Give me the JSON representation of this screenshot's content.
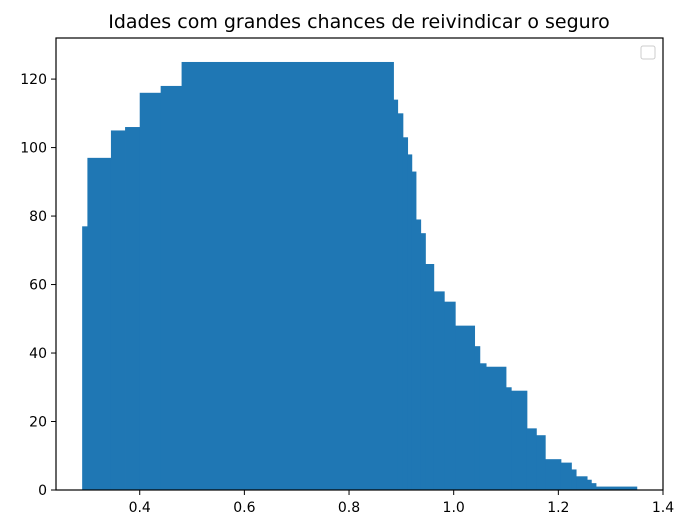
{
  "chart_data": {
    "type": "bar",
    "title": "Idades com grandes chances de reivindicar o seguro",
    "xlabel": "",
    "ylabel": "",
    "xlim": [
      0.24,
      1.4
    ],
    "ylim": [
      0,
      132
    ],
    "xticks": [
      0.4,
      0.6,
      0.8,
      1.0,
      1.2,
      1.4
    ],
    "xtick_labels": [
      "0.4",
      "0.6",
      "0.8",
      "1.0",
      "1.2",
      "1.4"
    ],
    "yticks": [
      0,
      20,
      40,
      60,
      80,
      100,
      120
    ],
    "ytick_labels": [
      "0",
      "20",
      "40",
      "60",
      "80",
      "100",
      "120"
    ],
    "grid": false,
    "legend": {
      "placement": "top-right",
      "entries": []
    },
    "bar_color": "#1f77b4",
    "bars": [
      {
        "x0": 0.29,
        "x1": 0.3,
        "value": 77
      },
      {
        "x0": 0.3,
        "x1": 0.345,
        "value": 97
      },
      {
        "x0": 0.345,
        "x1": 0.372,
        "value": 105
      },
      {
        "x0": 0.372,
        "x1": 0.4,
        "value": 106
      },
      {
        "x0": 0.4,
        "x1": 0.44,
        "value": 116
      },
      {
        "x0": 0.44,
        "x1": 0.48,
        "value": 118
      },
      {
        "x0": 0.48,
        "x1": 0.885,
        "value": 125
      },
      {
        "x0": 0.885,
        "x1": 0.893,
        "value": 114
      },
      {
        "x0": 0.893,
        "x1": 0.903,
        "value": 110
      },
      {
        "x0": 0.903,
        "x1": 0.912,
        "value": 103
      },
      {
        "x0": 0.912,
        "x1": 0.92,
        "value": 98
      },
      {
        "x0": 0.92,
        "x1": 0.928,
        "value": 93
      },
      {
        "x0": 0.928,
        "x1": 0.937,
        "value": 79
      },
      {
        "x0": 0.937,
        "x1": 0.946,
        "value": 75
      },
      {
        "x0": 0.946,
        "x1": 0.962,
        "value": 66
      },
      {
        "x0": 0.962,
        "x1": 0.982,
        "value": 58
      },
      {
        "x0": 0.982,
        "x1": 1.003,
        "value": 55
      },
      {
        "x0": 1.003,
        "x1": 1.04,
        "value": 48
      },
      {
        "x0": 1.04,
        "x1": 1.05,
        "value": 42
      },
      {
        "x0": 1.05,
        "x1": 1.062,
        "value": 37
      },
      {
        "x0": 1.062,
        "x1": 1.1,
        "value": 36
      },
      {
        "x0": 1.1,
        "x1": 1.11,
        "value": 30
      },
      {
        "x0": 1.11,
        "x1": 1.14,
        "value": 29
      },
      {
        "x0": 1.14,
        "x1": 1.158,
        "value": 18
      },
      {
        "x0": 1.158,
        "x1": 1.175,
        "value": 16
      },
      {
        "x0": 1.175,
        "x1": 1.205,
        "value": 9
      },
      {
        "x0": 1.205,
        "x1": 1.225,
        "value": 8
      },
      {
        "x0": 1.225,
        "x1": 1.234,
        "value": 6
      },
      {
        "x0": 1.234,
        "x1": 1.255,
        "value": 4
      },
      {
        "x0": 1.255,
        "x1": 1.263,
        "value": 3
      },
      {
        "x0": 1.263,
        "x1": 1.272,
        "value": 2
      },
      {
        "x0": 1.272,
        "x1": 1.35,
        "value": 1
      }
    ]
  }
}
